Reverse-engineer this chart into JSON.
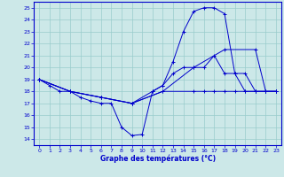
{
  "title": "Graphe des températures (°C)",
  "background_color": "#cce8e8",
  "grid_color": "#99cccc",
  "line_color": "#0000cc",
  "xlim": [
    -0.5,
    23.5
  ],
  "ylim": [
    13.5,
    25.5
  ],
  "xticks": [
    0,
    1,
    2,
    3,
    4,
    5,
    6,
    7,
    8,
    9,
    10,
    11,
    12,
    13,
    14,
    15,
    16,
    17,
    18,
    19,
    20,
    21,
    22,
    23
  ],
  "yticks": [
    14,
    15,
    16,
    17,
    18,
    19,
    20,
    21,
    22,
    23,
    24,
    25
  ],
  "series": [
    {
      "x": [
        0,
        1,
        2,
        3,
        4,
        5,
        6,
        7,
        8,
        9,
        10,
        11,
        12,
        13,
        14,
        15,
        16,
        17,
        18,
        19,
        20,
        21,
        22,
        23
      ],
      "y": [
        19,
        18.5,
        18,
        18,
        17.5,
        17.2,
        17,
        17,
        15,
        14.3,
        14.4,
        18,
        18.5,
        20.5,
        23,
        24.7,
        25,
        25,
        24.5,
        19.5,
        18,
        18,
        18,
        18
      ]
    },
    {
      "x": [
        0,
        3,
        6,
        9,
        12,
        15,
        18,
        21,
        22,
        23
      ],
      "y": [
        19,
        18,
        17.5,
        17,
        18,
        20,
        21.5,
        21.5,
        18,
        18
      ]
    },
    {
      "x": [
        0,
        3,
        6,
        9,
        11,
        12,
        13,
        14,
        15,
        16,
        17,
        18,
        19,
        20,
        21,
        22,
        23
      ],
      "y": [
        19,
        18,
        17.5,
        17,
        18,
        18.5,
        19.5,
        20,
        20,
        20,
        21,
        19.5,
        19.5,
        19.5,
        18,
        18,
        18
      ]
    },
    {
      "x": [
        0,
        3,
        6,
        9,
        12,
        15,
        16,
        17,
        18,
        19,
        20,
        21,
        22,
        23
      ],
      "y": [
        19,
        18,
        17.5,
        17,
        18,
        18,
        18,
        18,
        18,
        18,
        18,
        18,
        18,
        18
      ]
    }
  ]
}
